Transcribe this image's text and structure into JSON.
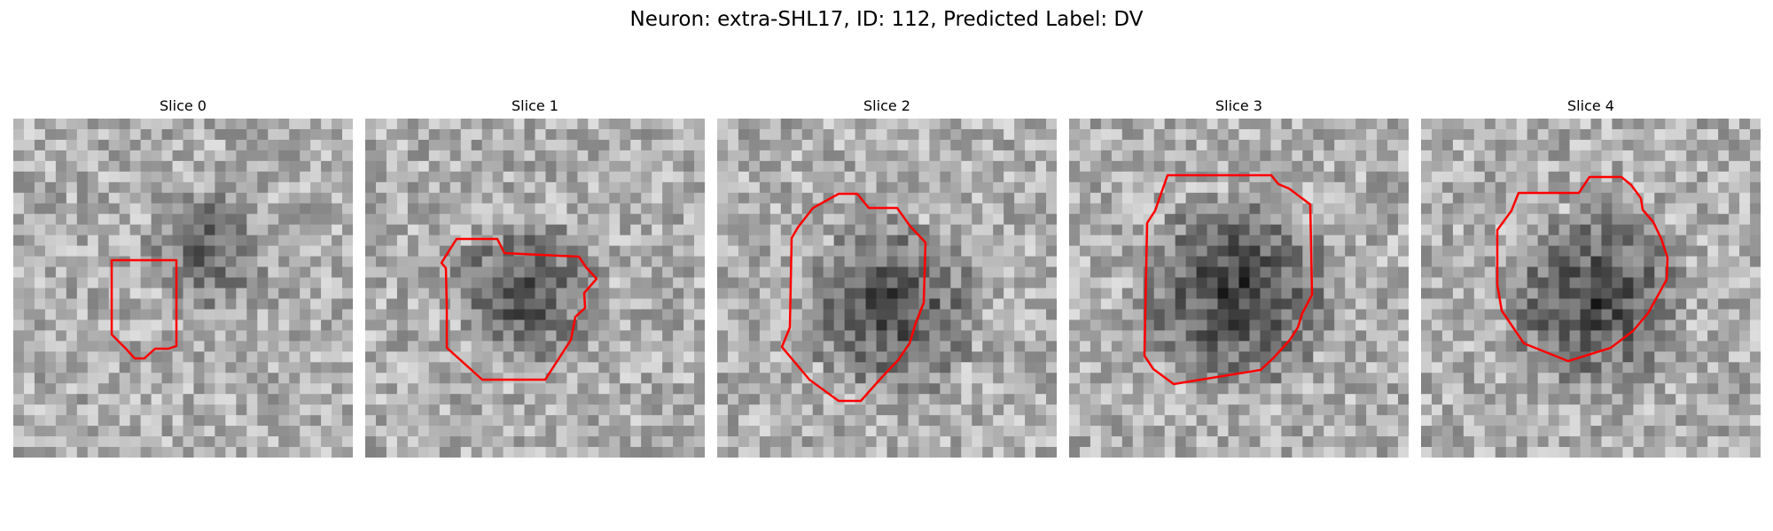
{
  "figure": {
    "title": "Neuron: extra-SHL17, ID: 112, Predicted Label: DV",
    "contour_color": "#ff0000"
  },
  "slices": [
    {
      "label": "Slice 0"
    },
    {
      "label": "Slice 1"
    },
    {
      "label": "Slice 2"
    },
    {
      "label": "Slice 3"
    },
    {
      "label": "Slice 4"
    }
  ]
}
